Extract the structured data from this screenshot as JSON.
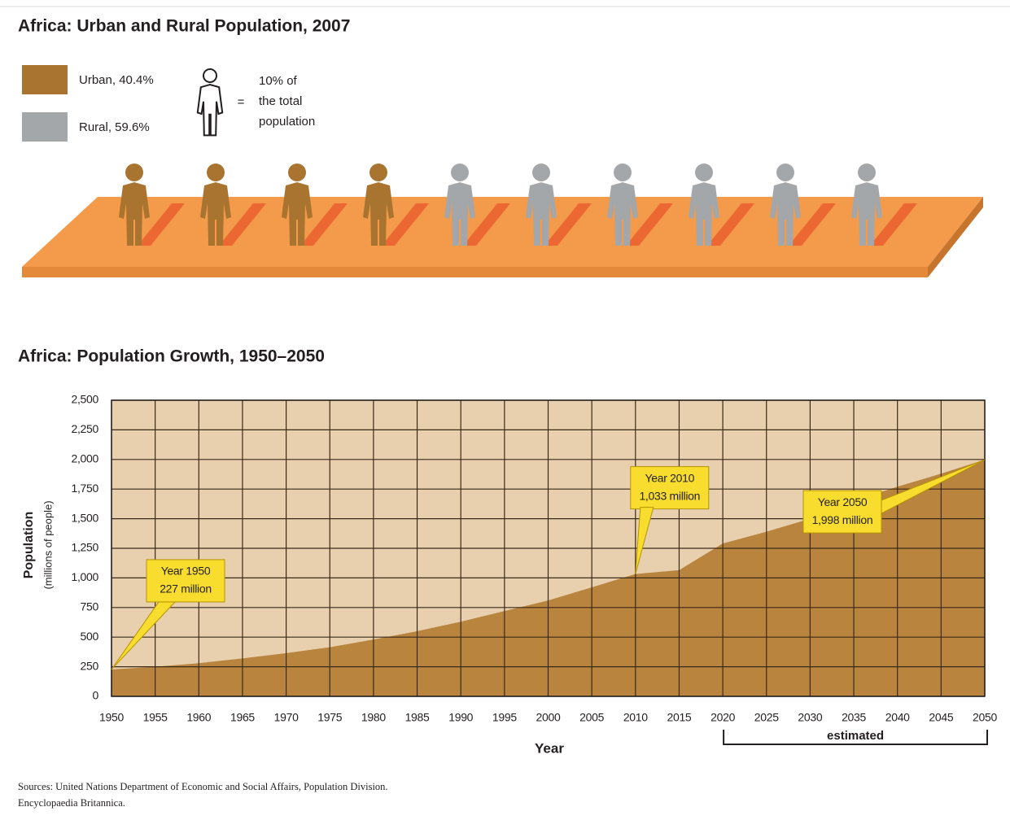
{
  "chart_data": [
    {
      "type": "pictogram",
      "title": "Africa: Urban and Rural Population, 2007",
      "values": [
        40.4,
        59.6
      ],
      "value_labels": [
        "Urban, 40.4%",
        "Rural, 59.6%"
      ],
      "colors": [
        "#a8742f",
        "#a4a7aa"
      ],
      "icon_key": {
        "value": 10,
        "lines": [
          "10% of",
          "the total",
          "population"
        ]
      }
    },
    {
      "type": "area",
      "title": "Africa: Population Growth, 1950–2050",
      "x": [
        1950,
        1955,
        1960,
        1965,
        1970,
        1975,
        1980,
        1985,
        1990,
        1995,
        2000,
        2005,
        2010,
        2015,
        2020,
        2025,
        2030,
        2035,
        2040,
        2045,
        2050
      ],
      "values": [
        227,
        250,
        280,
        320,
        365,
        415,
        480,
        550,
        630,
        720,
        810,
        920,
        1033,
        1065,
        1290,
        1390,
        1500,
        1650,
        1770,
        1880,
        1998
      ],
      "color": "#b8843e",
      "background": "#e8cfae",
      "grid": true,
      "xlim": [
        1950,
        2050
      ],
      "ylim": [
        0,
        2500
      ],
      "xticks": [
        1950,
        1955,
        1960,
        1965,
        1970,
        1975,
        1980,
        1985,
        1990,
        1995,
        2000,
        2005,
        2010,
        2015,
        2020,
        2025,
        2030,
        2035,
        2040,
        2045,
        2050
      ],
      "yticks": [
        0,
        250,
        500,
        750,
        {
          "value": 1000,
          "label": "1,000"
        },
        {
          "value": 1250,
          "label": "1,250"
        },
        {
          "value": 1500,
          "label": "1,500"
        },
        {
          "value": 1750,
          "label": "1,750"
        },
        {
          "value": 2000,
          "label": "2,000"
        },
        {
          "value": 2250,
          "label": "2,250"
        },
        {
          "value": 2500,
          "label": "2,500"
        }
      ],
      "xlabel": "Year",
      "ylabel": "Population",
      "ylabel_sub": "(millions of people)",
      "annotations": [
        {
          "x": 1950,
          "lines": [
            "Year 1950",
            "227 million"
          ]
        },
        {
          "x": 2010,
          "lines": [
            "Year 2010",
            "1,033 million"
          ]
        },
        {
          "x": 2050,
          "lines": [
            "Year 2050",
            "1,998 million"
          ]
        }
      ],
      "estimated": {
        "label": "estimated",
        "from": 2020,
        "to": 2050
      },
      "sources": [
        "Sources: United Nations Department of Economic and Social Affairs, Population Division.",
        "Encyclopaedia Britannica."
      ]
    }
  ]
}
